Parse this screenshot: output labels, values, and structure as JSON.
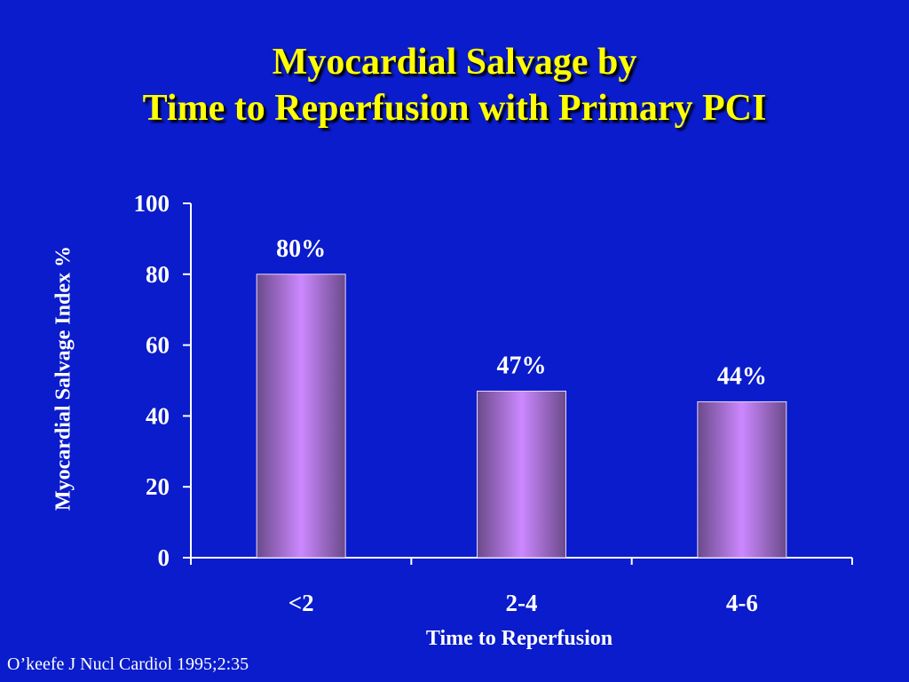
{
  "chart_data": {
    "type": "bar",
    "title_lines": [
      "Myocardial Salvage by",
      "Time to Reperfusion with Primary PCI"
    ],
    "xlabel": "Time to Reperfusion",
    "ylabel": "Myocardial Salvage Index %",
    "categories": [
      "<2",
      "2-4",
      "4-6"
    ],
    "values": [
      80,
      47,
      44
    ],
    "data_labels": [
      "80%",
      "47%",
      "44%"
    ],
    "ylim": [
      0,
      100
    ],
    "yticks": [
      0,
      20,
      40,
      60,
      80,
      100
    ],
    "bar_color": "#cc88ff",
    "bar_shade_color": "#6a4a8a",
    "axis_color": "#ffffff",
    "grid": false
  },
  "source": "O’keefe J Nucl Cardiol 1995;2:35",
  "colors": {
    "background": "#0a1ccb",
    "title": "#ffff00",
    "text": "#ffffff"
  }
}
